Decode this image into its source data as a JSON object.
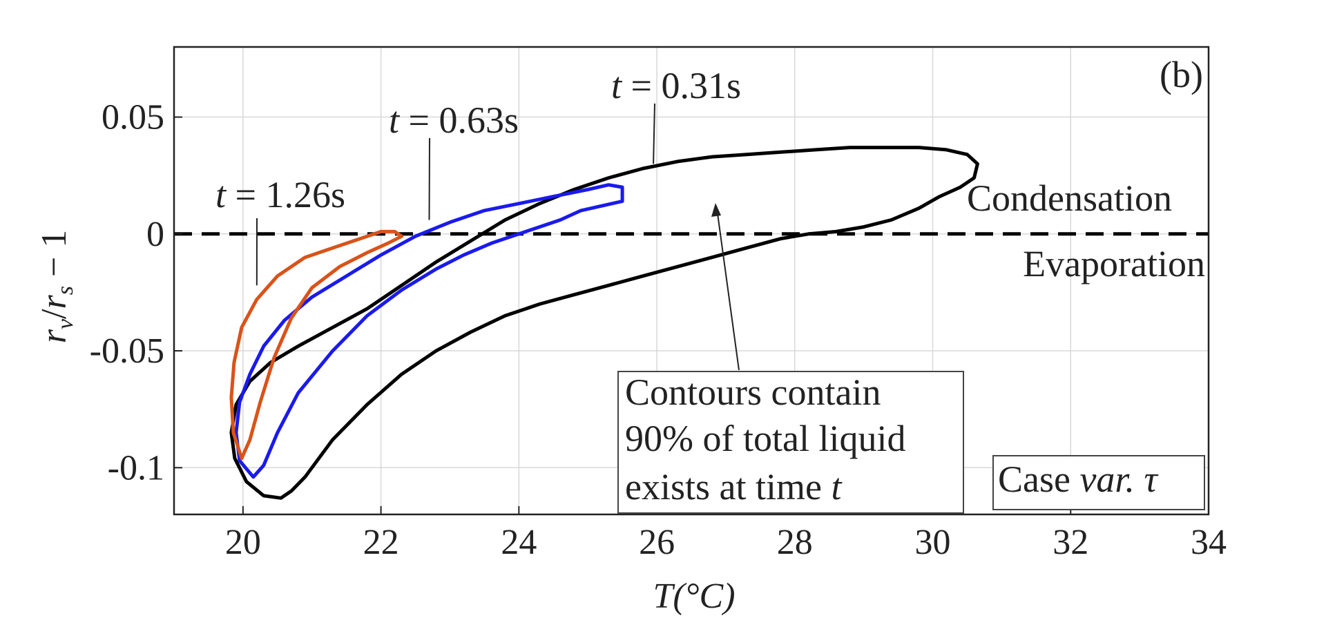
{
  "chart_data": {
    "type": "line",
    "panel_label": "(b)",
    "xlabel": "T(°C)",
    "ylabel": "r_v/r_s − 1",
    "ylabel_parts": {
      "r1": "r",
      "sub1": "v",
      "slash": "/",
      "r2": "r",
      "sub2": "s",
      "tail": " − 1"
    },
    "xlim": [
      19,
      34
    ],
    "ylim": [
      -0.12,
      0.08
    ],
    "xticks": [
      20,
      22,
      24,
      26,
      28,
      30,
      32,
      34
    ],
    "xtick_labels": [
      "20",
      "22",
      "24",
      "26",
      "28",
      "30",
      "32",
      "34"
    ],
    "yticks": [
      0.05,
      0,
      -0.05,
      -0.1
    ],
    "ytick_labels": [
      "0.05",
      "0",
      "-0.05",
      "-0.1"
    ],
    "grid": true,
    "reference_line": {
      "y": 0,
      "style": "dashed",
      "color": "#000000"
    },
    "region_labels": {
      "above": "Condensation",
      "below": "Evaporation"
    },
    "annotation_box": {
      "lines": [
        "Contours contain",
        "90% of total liquid",
        "exists at time "
      ],
      "italic_tail": "t"
    },
    "case_box": {
      "prefix": "Case ",
      "italic": "var. τ"
    },
    "series": [
      {
        "name": "t = 0.31s",
        "time_label": "t",
        "time_value": " = 0.31s",
        "color": "#000000",
        "points": [
          [
            20.55,
            -0.113
          ],
          [
            20.3,
            -0.112
          ],
          [
            20.05,
            -0.106
          ],
          [
            19.88,
            -0.096
          ],
          [
            19.83,
            -0.085
          ],
          [
            19.9,
            -0.073
          ],
          [
            20.1,
            -0.063
          ],
          [
            20.4,
            -0.055
          ],
          [
            20.8,
            -0.048
          ],
          [
            21.3,
            -0.04
          ],
          [
            21.8,
            -0.032
          ],
          [
            22.3,
            -0.022
          ],
          [
            22.8,
            -0.012
          ],
          [
            23.3,
            -0.003
          ],
          [
            23.8,
            0.006
          ],
          [
            24.3,
            0.013
          ],
          [
            24.8,
            0.019
          ],
          [
            25.3,
            0.024
          ],
          [
            25.8,
            0.028
          ],
          [
            26.3,
            0.031
          ],
          [
            26.8,
            0.033
          ],
          [
            27.3,
            0.034
          ],
          [
            27.8,
            0.035
          ],
          [
            28.3,
            0.036
          ],
          [
            28.8,
            0.037
          ],
          [
            29.3,
            0.037
          ],
          [
            29.8,
            0.037
          ],
          [
            30.2,
            0.036
          ],
          [
            30.5,
            0.034
          ],
          [
            30.65,
            0.03
          ],
          [
            30.6,
            0.024
          ],
          [
            30.4,
            0.02
          ],
          [
            30.1,
            0.016
          ],
          [
            29.8,
            0.011
          ],
          [
            29.4,
            0.006
          ],
          [
            29.0,
            0.003
          ],
          [
            28.6,
            0.001
          ],
          [
            28.2,
            0.0
          ],
          [
            27.8,
            -0.002
          ],
          [
            27.3,
            -0.006
          ],
          [
            26.8,
            -0.01
          ],
          [
            26.3,
            -0.014
          ],
          [
            25.8,
            -0.018
          ],
          [
            25.3,
            -0.022
          ],
          [
            24.8,
            -0.026
          ],
          [
            24.3,
            -0.03
          ],
          [
            23.8,
            -0.035
          ],
          [
            23.3,
            -0.042
          ],
          [
            22.8,
            -0.05
          ],
          [
            22.3,
            -0.06
          ],
          [
            21.8,
            -0.073
          ],
          [
            21.3,
            -0.088
          ],
          [
            20.9,
            -0.104
          ],
          [
            20.7,
            -0.11
          ],
          [
            20.55,
            -0.113
          ]
        ]
      },
      {
        "name": "t = 0.63s",
        "time_label": "t",
        "time_value": " = 0.63s",
        "color": "#1a1aee",
        "points": [
          [
            20.15,
            -0.104
          ],
          [
            19.95,
            -0.097
          ],
          [
            19.9,
            -0.085
          ],
          [
            19.95,
            -0.072
          ],
          [
            20.1,
            -0.06
          ],
          [
            20.3,
            -0.048
          ],
          [
            20.6,
            -0.037
          ],
          [
            21.0,
            -0.027
          ],
          [
            21.5,
            -0.018
          ],
          [
            22.0,
            -0.009
          ],
          [
            22.5,
            -0.001
          ],
          [
            23.0,
            0.005
          ],
          [
            23.5,
            0.01
          ],
          [
            24.0,
            0.013
          ],
          [
            24.5,
            0.016
          ],
          [
            25.0,
            0.019
          ],
          [
            25.3,
            0.021
          ],
          [
            25.5,
            0.02
          ],
          [
            25.5,
            0.014
          ],
          [
            25.2,
            0.012
          ],
          [
            24.9,
            0.01
          ],
          [
            24.6,
            0.006
          ],
          [
            24.3,
            0.003
          ],
          [
            24.0,
            0.0
          ],
          [
            23.6,
            -0.004
          ],
          [
            23.2,
            -0.009
          ],
          [
            22.8,
            -0.015
          ],
          [
            22.3,
            -0.024
          ],
          [
            21.8,
            -0.035
          ],
          [
            21.3,
            -0.05
          ],
          [
            20.8,
            -0.068
          ],
          [
            20.5,
            -0.085
          ],
          [
            20.3,
            -0.099
          ],
          [
            20.15,
            -0.104
          ]
        ]
      },
      {
        "name": "t = 1.26s",
        "time_label": "t",
        "time_value": " = 1.26s",
        "color": "#d95319",
        "points": [
          [
            19.98,
            -0.096
          ],
          [
            19.86,
            -0.085
          ],
          [
            19.83,
            -0.07
          ],
          [
            19.87,
            -0.055
          ],
          [
            19.98,
            -0.04
          ],
          [
            20.2,
            -0.028
          ],
          [
            20.5,
            -0.018
          ],
          [
            20.9,
            -0.01
          ],
          [
            21.3,
            -0.006
          ],
          [
            21.7,
            -0.002
          ],
          [
            22.0,
            0.001
          ],
          [
            22.2,
            0.001
          ],
          [
            22.3,
            -0.001
          ],
          [
            22.1,
            -0.004
          ],
          [
            21.8,
            -0.008
          ],
          [
            21.4,
            -0.014
          ],
          [
            21.0,
            -0.023
          ],
          [
            20.7,
            -0.036
          ],
          [
            20.45,
            -0.053
          ],
          [
            20.25,
            -0.072
          ],
          [
            20.1,
            -0.088
          ],
          [
            19.98,
            -0.096
          ]
        ]
      }
    ]
  }
}
